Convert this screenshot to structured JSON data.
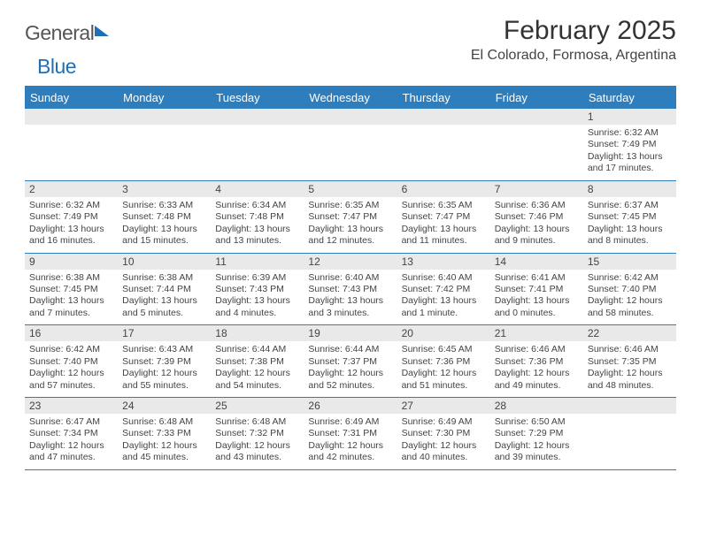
{
  "logo": {
    "word1": "General",
    "word2": "Blue"
  },
  "header": {
    "title": "February 2025",
    "location": "El Colorado, Formosa, Argentina"
  },
  "calendar": {
    "day_headers": [
      "Sunday",
      "Monday",
      "Tuesday",
      "Wednesday",
      "Thursday",
      "Friday",
      "Saturday"
    ],
    "header_bg": "#2e7dbd",
    "header_fg": "#ffffff",
    "daynum_bg": "#e9e9e9",
    "rule_color": "#2e7dbd",
    "weeks": [
      [
        {
          "n": "",
          "lines": [
            "",
            "",
            "",
            ""
          ]
        },
        {
          "n": "",
          "lines": [
            "",
            "",
            "",
            ""
          ]
        },
        {
          "n": "",
          "lines": [
            "",
            "",
            "",
            ""
          ]
        },
        {
          "n": "",
          "lines": [
            "",
            "",
            "",
            ""
          ]
        },
        {
          "n": "",
          "lines": [
            "",
            "",
            "",
            ""
          ]
        },
        {
          "n": "",
          "lines": [
            "",
            "",
            "",
            ""
          ]
        },
        {
          "n": "1",
          "lines": [
            "Sunrise: 6:32 AM",
            "Sunset: 7:49 PM",
            "Daylight: 13 hours",
            "and 17 minutes."
          ]
        }
      ],
      [
        {
          "n": "2",
          "lines": [
            "Sunrise: 6:32 AM",
            "Sunset: 7:49 PM",
            "Daylight: 13 hours",
            "and 16 minutes."
          ]
        },
        {
          "n": "3",
          "lines": [
            "Sunrise: 6:33 AM",
            "Sunset: 7:48 PM",
            "Daylight: 13 hours",
            "and 15 minutes."
          ]
        },
        {
          "n": "4",
          "lines": [
            "Sunrise: 6:34 AM",
            "Sunset: 7:48 PM",
            "Daylight: 13 hours",
            "and 13 minutes."
          ]
        },
        {
          "n": "5",
          "lines": [
            "Sunrise: 6:35 AM",
            "Sunset: 7:47 PM",
            "Daylight: 13 hours",
            "and 12 minutes."
          ]
        },
        {
          "n": "6",
          "lines": [
            "Sunrise: 6:35 AM",
            "Sunset: 7:47 PM",
            "Daylight: 13 hours",
            "and 11 minutes."
          ]
        },
        {
          "n": "7",
          "lines": [
            "Sunrise: 6:36 AM",
            "Sunset: 7:46 PM",
            "Daylight: 13 hours",
            "and 9 minutes."
          ]
        },
        {
          "n": "8",
          "lines": [
            "Sunrise: 6:37 AM",
            "Sunset: 7:45 PM",
            "Daylight: 13 hours",
            "and 8 minutes."
          ]
        }
      ],
      [
        {
          "n": "9",
          "lines": [
            "Sunrise: 6:38 AM",
            "Sunset: 7:45 PM",
            "Daylight: 13 hours",
            "and 7 minutes."
          ]
        },
        {
          "n": "10",
          "lines": [
            "Sunrise: 6:38 AM",
            "Sunset: 7:44 PM",
            "Daylight: 13 hours",
            "and 5 minutes."
          ]
        },
        {
          "n": "11",
          "lines": [
            "Sunrise: 6:39 AM",
            "Sunset: 7:43 PM",
            "Daylight: 13 hours",
            "and 4 minutes."
          ]
        },
        {
          "n": "12",
          "lines": [
            "Sunrise: 6:40 AM",
            "Sunset: 7:43 PM",
            "Daylight: 13 hours",
            "and 3 minutes."
          ]
        },
        {
          "n": "13",
          "lines": [
            "Sunrise: 6:40 AM",
            "Sunset: 7:42 PM",
            "Daylight: 13 hours",
            "and 1 minute."
          ]
        },
        {
          "n": "14",
          "lines": [
            "Sunrise: 6:41 AM",
            "Sunset: 7:41 PM",
            "Daylight: 13 hours",
            "and 0 minutes."
          ]
        },
        {
          "n": "15",
          "lines": [
            "Sunrise: 6:42 AM",
            "Sunset: 7:40 PM",
            "Daylight: 12 hours",
            "and 58 minutes."
          ]
        }
      ],
      [
        {
          "n": "16",
          "lines": [
            "Sunrise: 6:42 AM",
            "Sunset: 7:40 PM",
            "Daylight: 12 hours",
            "and 57 minutes."
          ]
        },
        {
          "n": "17",
          "lines": [
            "Sunrise: 6:43 AM",
            "Sunset: 7:39 PM",
            "Daylight: 12 hours",
            "and 55 minutes."
          ]
        },
        {
          "n": "18",
          "lines": [
            "Sunrise: 6:44 AM",
            "Sunset: 7:38 PM",
            "Daylight: 12 hours",
            "and 54 minutes."
          ]
        },
        {
          "n": "19",
          "lines": [
            "Sunrise: 6:44 AM",
            "Sunset: 7:37 PM",
            "Daylight: 12 hours",
            "and 52 minutes."
          ]
        },
        {
          "n": "20",
          "lines": [
            "Sunrise: 6:45 AM",
            "Sunset: 7:36 PM",
            "Daylight: 12 hours",
            "and 51 minutes."
          ]
        },
        {
          "n": "21",
          "lines": [
            "Sunrise: 6:46 AM",
            "Sunset: 7:36 PM",
            "Daylight: 12 hours",
            "and 49 minutes."
          ]
        },
        {
          "n": "22",
          "lines": [
            "Sunrise: 6:46 AM",
            "Sunset: 7:35 PM",
            "Daylight: 12 hours",
            "and 48 minutes."
          ]
        }
      ],
      [
        {
          "n": "23",
          "lines": [
            "Sunrise: 6:47 AM",
            "Sunset: 7:34 PM",
            "Daylight: 12 hours",
            "and 47 minutes."
          ]
        },
        {
          "n": "24",
          "lines": [
            "Sunrise: 6:48 AM",
            "Sunset: 7:33 PM",
            "Daylight: 12 hours",
            "and 45 minutes."
          ]
        },
        {
          "n": "25",
          "lines": [
            "Sunrise: 6:48 AM",
            "Sunset: 7:32 PM",
            "Daylight: 12 hours",
            "and 43 minutes."
          ]
        },
        {
          "n": "26",
          "lines": [
            "Sunrise: 6:49 AM",
            "Sunset: 7:31 PM",
            "Daylight: 12 hours",
            "and 42 minutes."
          ]
        },
        {
          "n": "27",
          "lines": [
            "Sunrise: 6:49 AM",
            "Sunset: 7:30 PM",
            "Daylight: 12 hours",
            "and 40 minutes."
          ]
        },
        {
          "n": "28",
          "lines": [
            "Sunrise: 6:50 AM",
            "Sunset: 7:29 PM",
            "Daylight: 12 hours",
            "and 39 minutes."
          ]
        },
        {
          "n": "",
          "lines": [
            "",
            "",
            "",
            ""
          ]
        }
      ]
    ]
  }
}
